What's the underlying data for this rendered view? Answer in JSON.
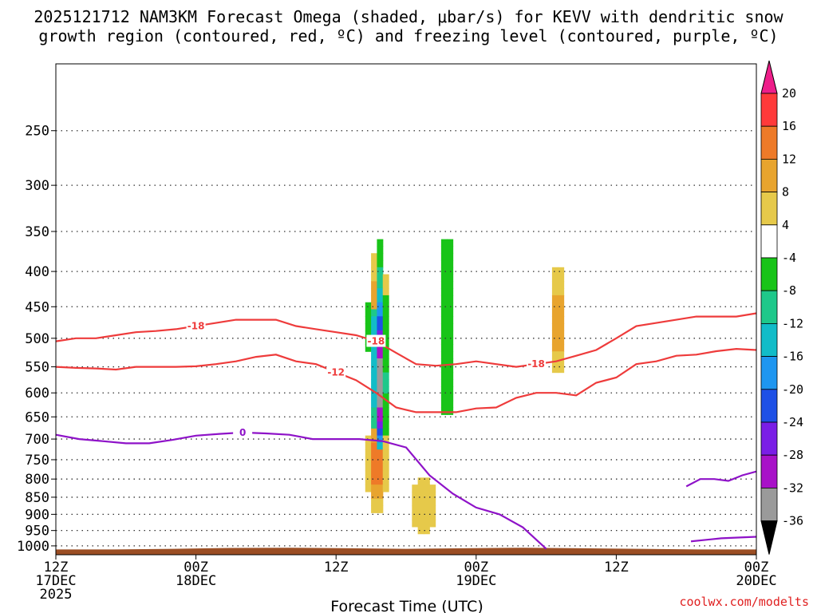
{
  "chart_data": {
    "type": "heatmap",
    "title_line1": "2025121712 NAM3KM Forecast Omega (shaded, μbar/s) for KEVV with dendritic snow",
    "title_line2": "growth region (contoured, red, ºC) and freezing level (contoured, purple, ºC)",
    "xlabel": "Forecast Time (UTC)",
    "credit": "coolwx.com/modelts",
    "x_range_hours": [
      0,
      60
    ],
    "x_ticks": [
      {
        "hour": 0,
        "l1": "12Z",
        "l2": "17DEC",
        "l3": "2025"
      },
      {
        "hour": 12,
        "l1": "00Z",
        "l2": "18DEC",
        "l3": ""
      },
      {
        "hour": 24,
        "l1": "12Z",
        "l2": "",
        "l3": ""
      },
      {
        "hour": 36,
        "l1": "00Z",
        "l2": "19DEC",
        "l3": ""
      },
      {
        "hour": 48,
        "l1": "12Z",
        "l2": "",
        "l3": ""
      },
      {
        "hour": 60,
        "l1": "00Z",
        "l2": "20DEC",
        "l3": ""
      }
    ],
    "y_axis": "pressure_hPa",
    "y_range": [
      200,
      1030
    ],
    "y_ticks": [
      "250",
      "300",
      "350",
      "400",
      "450",
      "500",
      "550",
      "600",
      "650",
      "700",
      "750",
      "800",
      "850",
      "900",
      "950",
      "1000"
    ],
    "colorbar": {
      "labels": [
        "20",
        "16",
        "12",
        "8",
        "4",
        "-4",
        "-8",
        "-12",
        "-16",
        "-20",
        "-24",
        "-28",
        "-32",
        "-36"
      ],
      "bounds": [
        20,
        16,
        12,
        8,
        4,
        -4,
        -8,
        -12,
        -16,
        -20,
        -24,
        -28,
        -32,
        -36
      ],
      "colors": [
        "#ff3a3a",
        "#ee7a28",
        "#e8a42e",
        "#e6c94a",
        "#ffffff",
        "#18c418",
        "#1ec88a",
        "#12bcc8",
        "#1e96f0",
        "#1e50e6",
        "#7a1ee6",
        "#a812c8",
        "#9a9a9a"
      ],
      "top_color": "#ee1e8a",
      "bottom_color": "#000000"
    },
    "omega_features": [
      {
        "t": 27.2,
        "p": 350,
        "th": 1.5,
        "dp": 180,
        "v": 4
      },
      {
        "t": 27.6,
        "p": 440,
        "th": 0.7,
        "dp": 70,
        "v": 12
      },
      {
        "t": 27.6,
        "p": 480,
        "th": 0.9,
        "dp": 80,
        "v": -12
      },
      {
        "t": 27.6,
        "p": 500,
        "th": 0.55,
        "dp": 60,
        "v": -24
      },
      {
        "t": 27.7,
        "p": 580,
        "th": 0.45,
        "dp": 150,
        "v": -36
      },
      {
        "t": 27.5,
        "p": 760,
        "th": 0.75,
        "dp": 120,
        "v": 16
      },
      {
        "t": 27.5,
        "p": 760,
        "th": 0.3,
        "dp": 60,
        "v": 20
      },
      {
        "t": 26.5,
        "p": 780,
        "th": 0.4,
        "dp": 70,
        "v": 4
      },
      {
        "t": 31.5,
        "p": 880,
        "th": 1.3,
        "dp": 110,
        "v": 8
      },
      {
        "t": 33.5,
        "p": 500,
        "th": 0.8,
        "dp": 180,
        "v": -8
      },
      {
        "t": 35.2,
        "p": 620,
        "th": 0.9,
        "dp": 150,
        "v": 4
      },
      {
        "t": 43,
        "p": 460,
        "th": 1.4,
        "dp": 300,
        "v": 4
      },
      {
        "t": 43,
        "p": 480,
        "th": 0.6,
        "dp": 90,
        "v": 12
      }
    ],
    "dgz_contours": [
      {
        "label": "-18",
        "p": [
          505,
          500,
          500,
          495,
          490,
          488,
          485,
          480,
          475,
          470,
          470,
          470,
          480,
          485,
          490,
          495,
          505,
          525,
          545,
          548,
          545,
          540,
          545,
          550,
          545,
          540,
          530,
          520,
          500,
          480,
          475,
          470,
          465,
          465,
          465,
          460
        ]
      },
      {
        "label": "-12",
        "p": [
          550,
          552,
          553,
          555,
          550,
          550,
          550,
          549,
          545,
          540,
          532,
          528,
          540,
          545,
          560,
          575,
          600,
          630,
          640,
          640,
          640,
          632,
          630,
          610,
          600,
          600,
          605,
          580,
          570,
          545,
          540,
          530,
          528,
          522,
          518,
          520
        ]
      }
    ],
    "freezing_level": {
      "label": "0",
      "p": [
        690,
        700,
        705,
        710,
        710,
        702,
        692,
        688,
        685,
        687,
        690,
        700,
        700,
        700,
        705,
        720,
        790,
        840,
        880,
        900,
        940,
        1010
      ]
    },
    "freezing_level_2": {
      "label": "0",
      "p": [
        820,
        800,
        800,
        805,
        790,
        780
      ]
    }
  }
}
